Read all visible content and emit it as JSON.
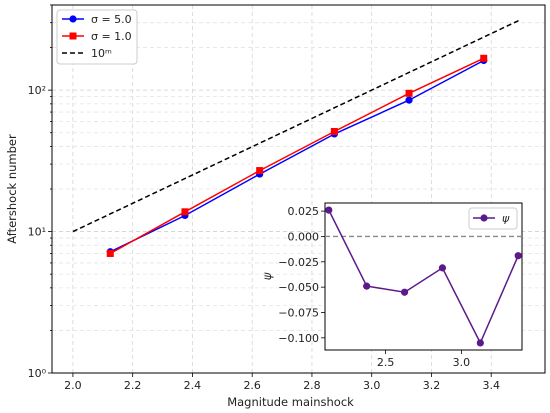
{
  "chart_data": [
    {
      "type": "line",
      "xlabel": "Magnitude mainshock",
      "ylabel": "Aftershock number",
      "yscale": "log",
      "xlim": [
        1.93,
        3.58
      ],
      "ylim": [
        1,
        400
      ],
      "x_ticks": [
        "2.0",
        "2.2",
        "2.4",
        "2.6",
        "2.8",
        "3.0",
        "3.2",
        "3.4"
      ],
      "y_ticks": [
        "10⁰",
        "10¹",
        "10²"
      ],
      "grid": true,
      "legend_position": "top-left",
      "series": [
        {
          "name": "σ = 5.0",
          "color": "#0000ff",
          "marker": "circle",
          "x": [
            2.125,
            2.375,
            2.625,
            2.875,
            3.125,
            3.375
          ],
          "y": [
            7.2,
            13.0,
            25.5,
            49,
            85,
            162
          ]
        },
        {
          "name": "σ = 1.0",
          "color": "#ff0000",
          "marker": "square",
          "x": [
            2.125,
            2.375,
            2.625,
            2.875,
            3.125,
            3.375
          ],
          "y": [
            7.0,
            13.8,
            27.0,
            51,
            95,
            168
          ]
        },
        {
          "name": "10ᵐ",
          "color": "#000000",
          "style": "dashed",
          "x": [
            2.0,
            3.5
          ],
          "y": [
            10,
            316.2
          ]
        }
      ]
    },
    {
      "type": "line",
      "inset": true,
      "ylabel": "ψ",
      "xlim": [
        2.1,
        3.4
      ],
      "ylim": [
        -0.112,
        0.033
      ],
      "x_ticks": [
        "2.5",
        "3.0"
      ],
      "y_ticks": [
        "0.025",
        "0.000",
        "−0.025",
        "−0.050",
        "−0.075",
        "−0.100"
      ],
      "legend_position": "top-right",
      "reference_line": 0,
      "series": [
        {
          "name": "ψ",
          "color": "#5b1a8b",
          "marker": "circle",
          "x": [
            2.125,
            2.375,
            2.625,
            2.875,
            3.125,
            3.375
          ],
          "y": [
            0.026,
            -0.049,
            -0.055,
            -0.031,
            -0.105,
            -0.019
          ]
        }
      ]
    }
  ]
}
